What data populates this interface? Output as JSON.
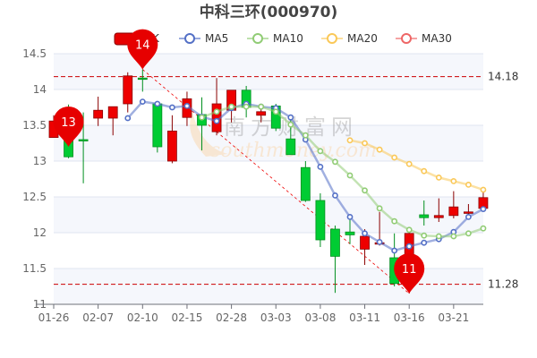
{
  "chart_data": {
    "type": "candlestick",
    "title": "中科三环(000970)",
    "legend": [
      "日K",
      "MA5",
      "MA10",
      "MA20",
      "MA30"
    ],
    "legend_placement": "top-center",
    "colors": {
      "up": "#ee0000",
      "down": "#00cc33",
      "MA5": "#5470c6",
      "MA10": "#91cc75",
      "MA20": "#fac858",
      "MA30": "#ee6666",
      "markline": "#cc0000"
    },
    "ylim": [
      11,
      14.5
    ],
    "yticks": [
      "11",
      "11.5",
      "12",
      "12.5",
      "13",
      "13.5",
      "14",
      "14.5"
    ],
    "grid": true,
    "x": [
      "01-26",
      "",
      "",
      "02-07",
      "",
      "",
      "02-10",
      "",
      "",
      "02-15",
      "",
      "",
      "02-28",
      "",
      "",
      "03-03",
      "",
      "",
      "03-08",
      "",
      "",
      "03-11",
      "",
      "",
      "03-16",
      "",
      "",
      "03-21",
      "",
      ""
    ],
    "xtick_labels": [
      "01-26",
      "02-07",
      "02-10",
      "02-15",
      "02-28",
      "03-03",
      "03-08",
      "03-11",
      "03-16",
      "03-21"
    ],
    "ohlc": [
      [
        13.33,
        13.56,
        13.64,
        13.33
      ],
      [
        13.29,
        13.06,
        13.79,
        13.04
      ],
      [
        13.3,
        13.29,
        13.68,
        12.69
      ],
      [
        13.6,
        13.71,
        13.9,
        13.49
      ],
      [
        13.6,
        13.76,
        13.76,
        13.36
      ],
      [
        13.8,
        14.19,
        14.24,
        13.68
      ],
      [
        14.16,
        14.15,
        14.28,
        13.97
      ],
      [
        13.8,
        13.2,
        13.8,
        13.12
      ],
      [
        13.0,
        13.42,
        13.64,
        12.97
      ],
      [
        13.61,
        13.87,
        13.97,
        13.49
      ],
      [
        13.65,
        13.5,
        13.89,
        13.15
      ],
      [
        13.41,
        13.8,
        14.16,
        13.36
      ],
      [
        13.71,
        13.99,
        13.99,
        13.54
      ],
      [
        13.99,
        13.75,
        14.05,
        13.61
      ],
      [
        13.64,
        13.69,
        13.74,
        13.54
      ],
      [
        13.77,
        13.46,
        13.8,
        13.42
      ],
      [
        13.31,
        13.09,
        13.6,
        13.09
      ],
      [
        12.91,
        12.45,
        13.0,
        12.43
      ],
      [
        12.45,
        11.9,
        12.55,
        11.8
      ],
      [
        12.05,
        11.67,
        12.1,
        11.16
      ],
      [
        12.01,
        11.97,
        12.21,
        11.84
      ],
      [
        11.77,
        11.95,
        12.05,
        11.55
      ],
      [
        11.84,
        11.86,
        12.29,
        11.82
      ],
      [
        11.65,
        11.29,
        11.99,
        11.25
      ],
      [
        11.7,
        11.99,
        12.08,
        11.15
      ],
      [
        12.25,
        12.21,
        12.45,
        12.1
      ],
      [
        12.21,
        12.24,
        12.48,
        12.15
      ],
      [
        12.24,
        12.36,
        12.58,
        12.2
      ],
      [
        12.27,
        12.29,
        12.4,
        12.25
      ],
      [
        12.34,
        12.49,
        12.58,
        12.33
      ]
    ],
    "ma": {
      "MA5": [
        null,
        null,
        null,
        null,
        null,
        13.6,
        13.83,
        13.8,
        13.75,
        13.77,
        13.62,
        13.56,
        13.74,
        13.8,
        13.76,
        13.74,
        13.61,
        13.3,
        12.92,
        12.52,
        12.22,
        11.99,
        11.87,
        11.75,
        11.81,
        11.86,
        11.91,
        12.01,
        12.22,
        12.33
      ],
      "MA10": [
        null,
        null,
        null,
        null,
        null,
        null,
        null,
        null,
        null,
        null,
        13.61,
        13.69,
        13.76,
        13.76,
        13.76,
        13.69,
        13.51,
        13.36,
        13.14,
        12.99,
        12.8,
        12.59,
        12.34,
        12.16,
        12.04,
        11.96,
        11.95,
        11.95,
        11.99,
        12.06
      ],
      "MA20": [
        null,
        null,
        null,
        null,
        null,
        null,
        null,
        null,
        null,
        null,
        null,
        null,
        null,
        null,
        null,
        null,
        null,
        null,
        null,
        null,
        13.29,
        13.25,
        13.16,
        13.05,
        12.96,
        12.86,
        12.77,
        12.72,
        12.67,
        12.6
      ],
      "MA30": []
    },
    "marklines": [
      {
        "value": 14.18,
        "label": "14.18"
      },
      {
        "value": 11.28,
        "label": "11.28"
      }
    ],
    "markpoints": [
      {
        "index": 1,
        "value": 13.2,
        "label": "13"
      },
      {
        "index": 6,
        "value": 14.28,
        "label": "14"
      },
      {
        "index": 24,
        "value": 11.15,
        "label": "11"
      }
    ],
    "trendline": {
      "from": {
        "index": 6,
        "value": 14.28
      },
      "to": {
        "index": 24,
        "value": 11.15
      }
    },
    "watermark": [
      "南方财富网",
      "southmoney.com"
    ]
  }
}
